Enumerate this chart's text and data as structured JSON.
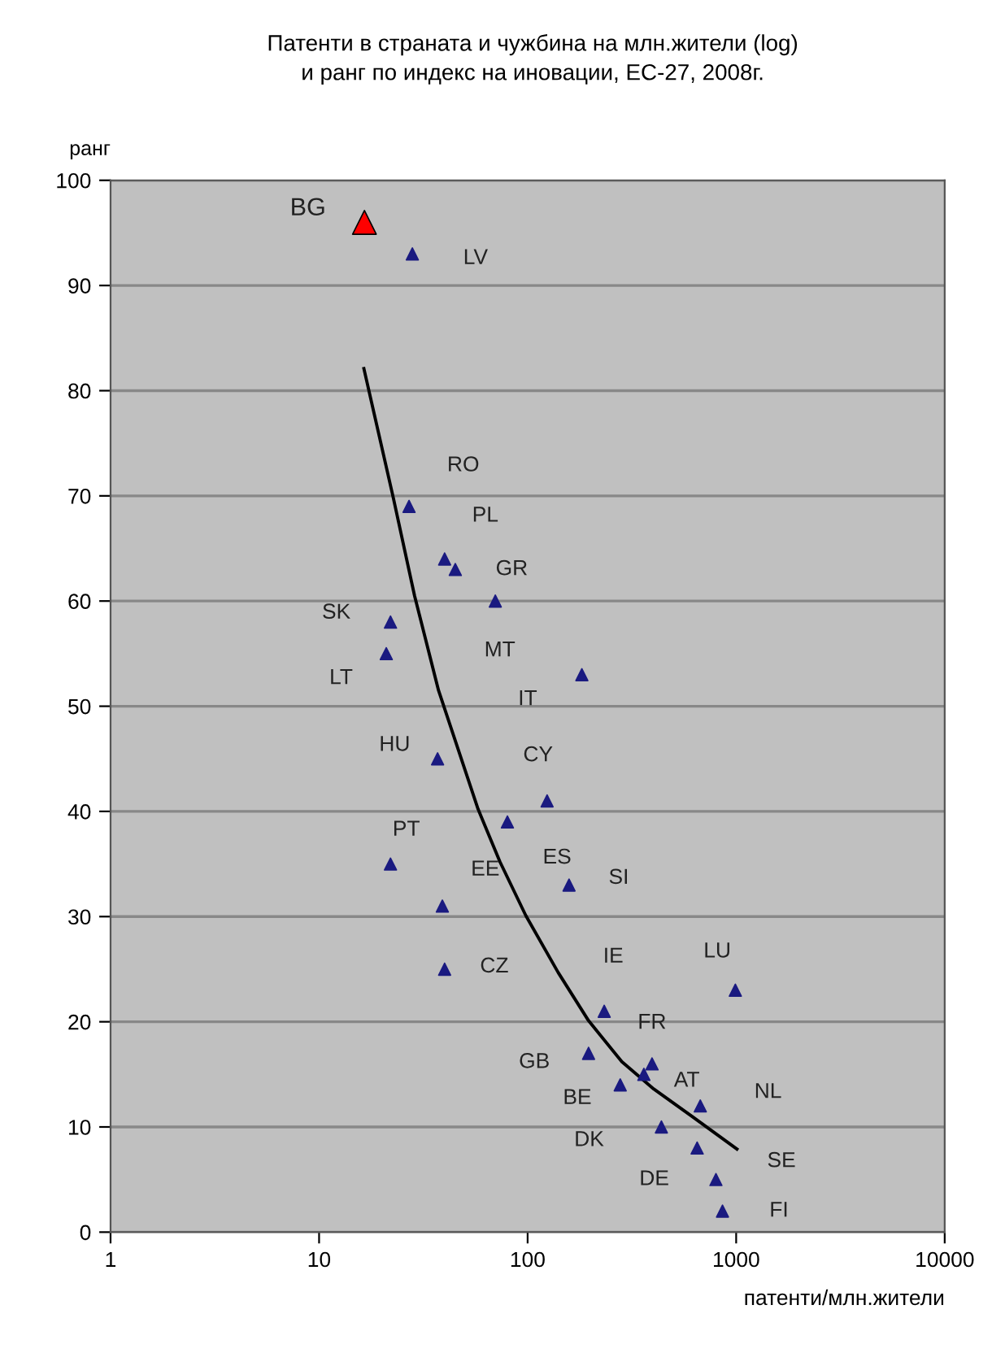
{
  "chart_data": {
    "type": "scatter",
    "title": "Патенти в страната и чужбина на млн.жители (log)\nи ранг по индекс на иновации, ЕС-27, 2008г.",
    "xlabel": "патенти/млн.жители",
    "ylabel": "ранг",
    "log": "x",
    "xlim": [
      1,
      10000
    ],
    "xticks": [
      1,
      10,
      100,
      1000,
      10000
    ],
    "ylim": [
      0,
      100
    ],
    "yticks": [
      0,
      10,
      20,
      30,
      40,
      50,
      60,
      70,
      80,
      90,
      100
    ],
    "grid": "y",
    "legend": false,
    "marker": "triangle",
    "series": [
      {
        "color": "#ff0000",
        "x": [
          16.5
        ],
        "values": [
          96
        ]
      },
      {
        "color": "#1a1a80",
        "x": [
          28,
          27,
          40,
          45,
          70,
          22,
          21,
          182,
          37,
          124,
          80,
          22,
          158,
          39,
          40,
          991,
          233,
          196,
          395,
          361,
          278,
          673,
          438,
          650,
          800,
          860
        ],
        "values": [
          93,
          69,
          64,
          63,
          60,
          58,
          55,
          53,
          45,
          41,
          39,
          35,
          33,
          31,
          25,
          23,
          21,
          17,
          16,
          15,
          14,
          12,
          10,
          8,
          5,
          2
        ]
      },
      {
        "type": "line",
        "marker": "none",
        "color": "#000000",
        "x": [
          16.4,
          22.7,
          28.7,
          37.4,
          57.9,
          73.7,
          98,
          140,
          196,
          283,
          403,
          615,
          1009
        ],
        "values": [
          82.1,
          69.8,
          60.5,
          51.5,
          40.2,
          35.2,
          30.1,
          24.7,
          20.1,
          16.2,
          13.6,
          11.0,
          7.9
        ]
      }
    ],
    "annotations": [
      {
        "text": "BG",
        "x": 16.5,
        "y": 96
      },
      {
        "text": "LV",
        "x": 28,
        "y": 93
      },
      {
        "text": "RO",
        "x": 27,
        "y": 69
      },
      {
        "text": "PL",
        "x": 40,
        "y": 64
      },
      {
        "text": "GR",
        "x": 45,
        "y": 63
      },
      {
        "text": "MT",
        "x": 70,
        "y": 60
      },
      {
        "text": "SK",
        "x": 22,
        "y": 58
      },
      {
        "text": "LT",
        "x": 21,
        "y": 55
      },
      {
        "text": "IT",
        "x": 182,
        "y": 53
      },
      {
        "text": "HU",
        "x": 37,
        "y": 45
      },
      {
        "text": "CY",
        "x": 124,
        "y": 41
      },
      {
        "text": "ES",
        "x": 80,
        "y": 39
      },
      {
        "text": "PT",
        "x": 22,
        "y": 35
      },
      {
        "text": "SI",
        "x": 158,
        "y": 33
      },
      {
        "text": "EE",
        "x": 39,
        "y": 31
      },
      {
        "text": "CZ",
        "x": 40,
        "y": 25
      },
      {
        "text": "LU",
        "x": 991,
        "y": 23
      },
      {
        "text": "IE",
        "x": 233,
        "y": 21
      },
      {
        "text": "GB",
        "x": 196,
        "y": 17
      },
      {
        "text": "FR",
        "x": 395,
        "y": 16
      },
      {
        "text": "AT",
        "x": 361,
        "y": 15
      },
      {
        "text": "BE",
        "x": 278,
        "y": 14
      },
      {
        "text": "NL",
        "x": 673,
        "y": 12
      },
      {
        "text": "DK",
        "x": 438,
        "y": 10
      },
      {
        "text": "DE",
        "x": 650,
        "y": 8
      },
      {
        "text": "SE",
        "x": 800,
        "y": 5
      },
      {
        "text": "FI",
        "x": 860,
        "y": 2
      }
    ]
  }
}
